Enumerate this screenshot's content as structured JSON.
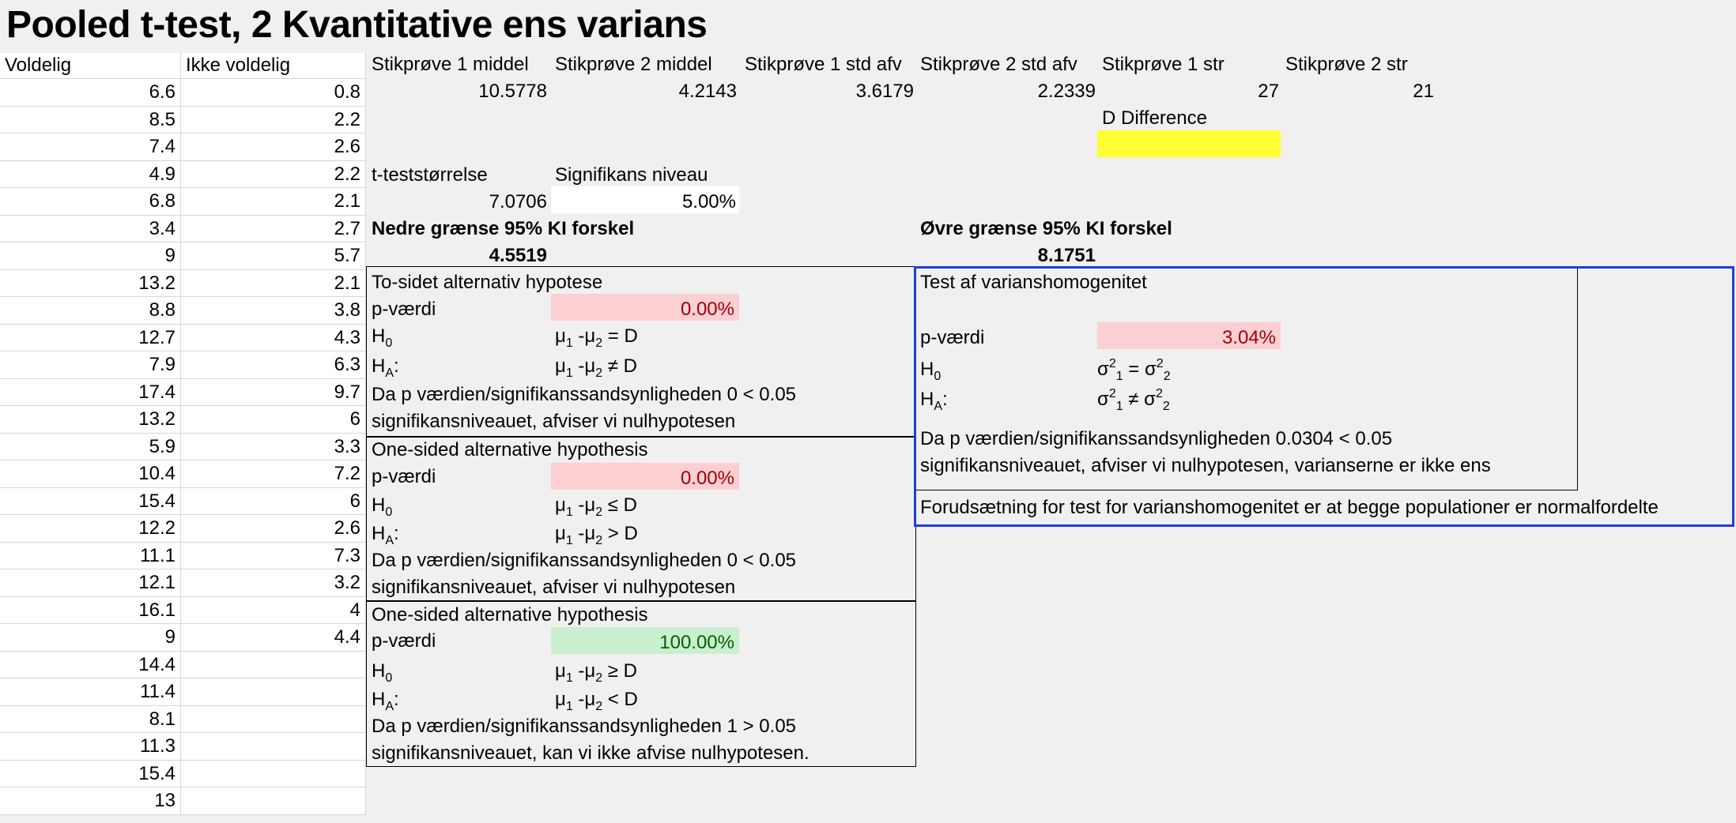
{
  "title": "Pooled t-test, 2 Kvantitative ens varians",
  "columns": {
    "col1_header": "Voldelig",
    "col2_header": "Ikke voldelig",
    "col1": [
      "6.6",
      "8.5",
      "7.4",
      "4.9",
      "6.8",
      "3.4",
      "9",
      "13.2",
      "8.8",
      "12.7",
      "7.9",
      "17.4",
      "13.2",
      "5.9",
      "10.4",
      "15.4",
      "12.2",
      "11.1",
      "12.1",
      "16.1",
      "9",
      "14.4",
      "11.4",
      "8.1",
      "11.3",
      "15.4",
      "13"
    ],
    "col2": [
      "0.8",
      "2.2",
      "2.6",
      "2.2",
      "2.1",
      "2.7",
      "5.7",
      "2.1",
      "3.8",
      "4.3",
      "6.3",
      "9.7",
      "6",
      "3.3",
      "7.2",
      "6",
      "2.6",
      "7.3",
      "3.2",
      "4",
      "4.4",
      "",
      "",
      "",
      "",
      "",
      ""
    ]
  },
  "stats": {
    "mean1_label": "Stikprøve 1 middel",
    "mean1": "10.5778",
    "mean2_label": "Stikprøve 2 middel",
    "mean2": "4.2143",
    "sd1_label": "Stikprøve 1 std afv",
    "sd1": "3.6179",
    "sd2_label": "Stikprøve 2 std afv",
    "sd2": "2.2339",
    "n1_label": "Stikprøve 1 str",
    "n1": "27",
    "n2_label": "Stikprøve 2 str",
    "n2": "21",
    "d_label": "D Difference",
    "d_value": "",
    "t_label": "t-teststørrelse",
    "t_value": "7.0706",
    "alpha_label": "Signifikans niveau",
    "alpha_value": "5.00%",
    "ci_lower_label": "Nedre grænse 95% KI forskel",
    "ci_lower": "4.5519",
    "ci_upper_label": "Øvre grænse 95% KI forskel",
    "ci_upper": "8.1751"
  },
  "two_sided": {
    "heading": "To-sidet alternativ hypotese",
    "p_label": "p-værdi",
    "p_value": "0.00%",
    "h0_label": "H",
    "h0_sub": "0",
    "h0_text": "μ",
    "h0_expr": {
      "a": "1",
      "mid": " -μ",
      "b": "2",
      "rel": " = D"
    },
    "ha_label": "H",
    "ha_sub": "A",
    "ha_colon": ":",
    "ha_expr": {
      "a": "1",
      "mid": " -μ",
      "b": "2",
      "rel": " ≠ D"
    },
    "conclusion1": "Da p værdien/signifikanssandsynligheden 0 < 0.05",
    "conclusion2": "signifikansniveauet, afviser vi nulhypotesen"
  },
  "one_sided_1": {
    "heading": "One-sided alternative hypothesis",
    "p_label": "p-værdi",
    "p_value": "0.00%",
    "h0_rel": " ≤ D",
    "ha_rel": " > D",
    "conclusion1": "Da p værdien/signifikanssandsynligheden 0 < 0.05",
    "conclusion2": "signifikansniveauet, afviser vi nulhypotesen"
  },
  "one_sided_2": {
    "heading": "One-sided alternative hypothesis",
    "p_label": "p-værdi",
    "p_value": "100.00%",
    "h0_rel": " ≥ D",
    "ha_rel": " < D",
    "conclusion1": "Da p værdien/signifikanssandsynligheden 1 > 0.05",
    "conclusion2": "signifikansniveauet, kan vi ikke afvise nulhypotesen."
  },
  "variance_test": {
    "heading": "Test af varianshomogenitet",
    "p_label": "p-værdi",
    "p_value": "3.04%",
    "h0_rel": " = σ",
    "ha_rel": " ≠ σ",
    "conclusion1": "Da p værdien/signifikanssandsynligheden 0.0304 < 0.05",
    "conclusion2": "signifikansniveauet, afviser vi nulhypotesen, varianserne er ikke ens",
    "assumption": "Forudsætning for test for varianshomogenitet er at begge populationer er normalfordelte"
  },
  "symbols": {
    "mu": "μ",
    "sigma": "σ",
    "minus_mu": " -μ",
    "one": "1",
    "two": "2",
    "sq": "2",
    "H": "H",
    "sub0": "0",
    "subA": "A",
    "colon": ":"
  },
  "colors": {
    "pink_bg": "#fccfd3",
    "pink_text": "#9c0006",
    "green_bg": "#c9efce",
    "green_text": "#006100",
    "yellow": "#ffff33",
    "blue_border": "#1f3fd9"
  }
}
